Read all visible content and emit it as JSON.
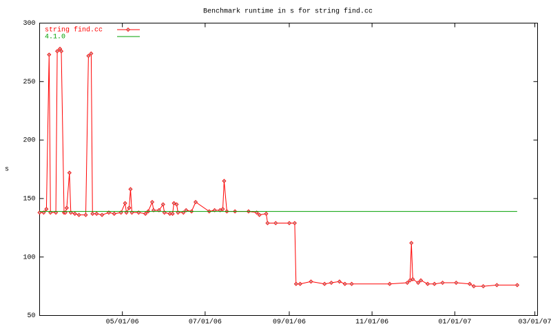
{
  "chart_data": {
    "type": "line",
    "title": "Benchmark runtime in s for string find.cc",
    "ylabel": "s",
    "xlim": [
      "2006-03-01",
      "2007-03-03"
    ],
    "xticks": [
      {
        "value": "2006-05-01",
        "label": "05/01/06"
      },
      {
        "value": "2006-07-01",
        "label": "07/01/06"
      },
      {
        "value": "2006-09-01",
        "label": "09/01/06"
      },
      {
        "value": "2006-11-01",
        "label": "11/01/06"
      },
      {
        "value": "2007-01-01",
        "label": "01/01/07"
      },
      {
        "value": "2007-03-01",
        "label": "03/01/07"
      }
    ],
    "ylim": [
      50,
      300
    ],
    "yticks": [
      50,
      100,
      150,
      200,
      250,
      300
    ],
    "legend": "top-left",
    "series": [
      {
        "name": "string find.cc",
        "color": "#ff0000",
        "markers": true,
        "x": [
          "2006-03-01",
          "2006-03-04",
          "2006-03-06",
          "2006-03-08",
          "2006-03-09",
          "2006-03-13",
          "2006-03-14",
          "2006-03-16",
          "2006-03-17",
          "2006-03-19",
          "2006-03-20",
          "2006-03-21",
          "2006-03-23",
          "2006-03-24",
          "2006-03-27",
          "2006-03-30",
          "2006-04-04",
          "2006-04-06",
          "2006-04-08",
          "2006-04-09",
          "2006-04-12",
          "2006-04-16",
          "2006-04-21",
          "2006-04-25",
          "2006-04-30",
          "2006-05-03",
          "2006-05-04",
          "2006-05-06",
          "2006-05-07",
          "2006-05-08",
          "2006-05-13",
          "2006-05-18",
          "2006-05-20",
          "2006-05-23",
          "2006-05-24",
          "2006-05-28",
          "2006-05-31",
          "2006-06-01",
          "2006-06-05",
          "2006-06-07",
          "2006-06-08",
          "2006-06-10",
          "2006-06-11",
          "2006-06-15",
          "2006-06-17",
          "2006-06-21",
          "2006-06-24",
          "2006-07-04",
          "2006-07-08",
          "2006-07-12",
          "2006-07-14",
          "2006-07-15",
          "2006-07-17",
          "2006-07-23",
          "2006-08-02",
          "2006-08-08",
          "2006-08-10",
          "2006-08-15",
          "2006-08-16",
          "2006-08-22",
          "2006-09-01",
          "2006-09-05",
          "2006-09-06",
          "2006-09-09",
          "2006-09-17",
          "2006-09-27",
          "2006-10-02",
          "2006-10-08",
          "2006-10-12",
          "2006-10-17",
          "2006-11-14",
          "2006-11-27",
          "2006-11-29",
          "2006-11-30",
          "2006-12-01",
          "2006-12-05",
          "2006-12-07",
          "2006-12-12",
          "2006-12-17",
          "2006-12-23",
          "2007-01-02",
          "2007-01-12",
          "2007-01-15",
          "2007-01-22",
          "2007-02-01",
          "2007-02-16"
        ],
        "values": [
          138,
          138,
          141,
          273,
          138,
          138,
          276,
          278,
          276,
          138,
          138,
          142,
          172,
          138,
          137,
          136,
          136,
          272,
          274,
          137,
          137,
          136,
          138,
          137,
          138,
          146,
          138,
          142,
          158,
          138,
          138,
          137,
          139,
          147,
          140,
          140,
          145,
          138,
          137,
          137,
          146,
          145,
          138,
          138,
          140,
          139,
          147,
          139,
          140,
          140,
          141,
          165,
          139,
          139,
          139,
          138,
          136,
          137,
          129,
          129,
          129,
          129,
          77,
          77,
          79,
          77,
          78,
          79,
          77,
          77,
          77,
          78,
          80,
          112,
          81,
          78,
          80,
          77,
          77,
          78,
          78,
          77,
          75,
          75,
          76,
          76
        ]
      },
      {
        "name": "4.1.0",
        "color": "#00a000",
        "markers": false,
        "x": [
          "2006-03-01",
          "2007-02-16"
        ],
        "values": [
          139,
          139
        ]
      }
    ]
  }
}
